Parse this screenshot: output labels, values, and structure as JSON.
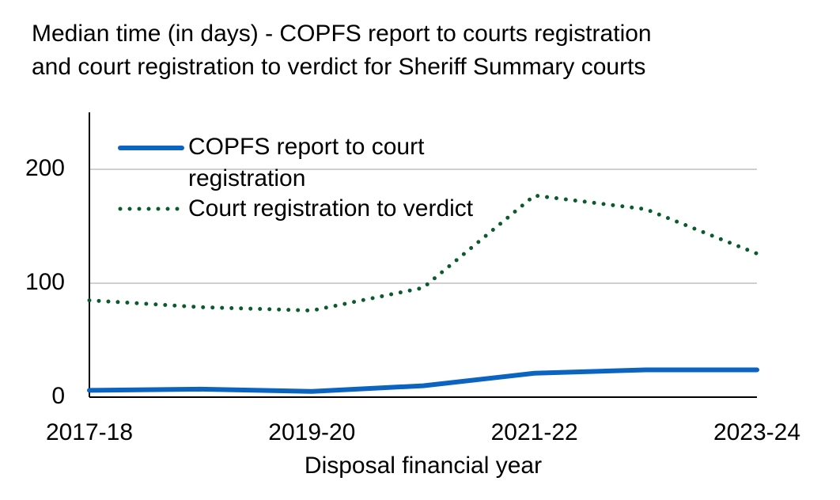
{
  "chart_data": {
    "type": "line",
    "title": "Median time (in days) - COPFS report to courts registration and court registration to verdict for Sheriff Summary courts",
    "x_label": "Disposal financial year",
    "categories": [
      "2017-18",
      null,
      "2019-20",
      null,
      "2021-22",
      null,
      "2023-24"
    ],
    "series": [
      {
        "name": "COPFS report to court registration",
        "color": "#0a64c0",
        "style": "solid",
        "values": [
          6,
          7,
          5,
          10,
          21,
          24,
          24
        ]
      },
      {
        "name": "Court registration to verdict",
        "color": "#0b5a2e",
        "style": "dotted",
        "values": [
          85,
          79,
          76,
          96,
          177,
          165,
          126
        ]
      }
    ],
    "ylim": [
      0,
      250
    ],
    "yticks": [
      0,
      100,
      200
    ],
    "grid": true,
    "legend": "top-left"
  }
}
